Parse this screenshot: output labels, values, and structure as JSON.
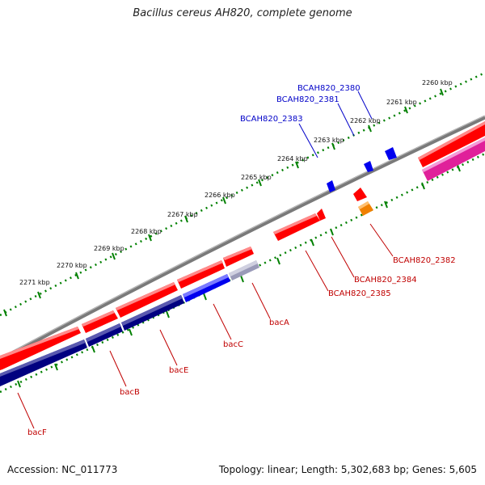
{
  "title": "Bacillus cereus AH820, complete genome",
  "footer": {
    "accession": "Accession: NC_011773",
    "summary": "Topology: linear; Length: 5,302,683 bp; Genes: 5,605"
  },
  "colors": {
    "forward_gene": "#ff0000",
    "reverse_gene": "#0000ee",
    "operon_dark": "#000080",
    "pink_gene": "#e0209a",
    "orange_gene": "#f08000",
    "axis": "#888888",
    "tick": "#008000",
    "label_red": "#c00000",
    "label_blue": "#0000c8"
  },
  "kbp_labels": [
    "2260 kbp",
    "2261 kbp",
    "2262 kbp",
    "2263 kbp",
    "2264 kbp",
    "2265 kbp",
    "2266 kbp",
    "2267 kbp",
    "2268 kbp",
    "2269 kbp",
    "2270 kbp",
    "2271 kbp"
  ],
  "gene_labels": {
    "bcah820_2380": "BCAH820_2380",
    "bcah820_2381": "BCAH820_2381",
    "bcah820_2383": "BCAH820_2383",
    "bcah820_2382": "BCAH820_2382",
    "bcah820_2384": "BCAH820_2384",
    "bcah820_2385": "BCAH820_2385",
    "bacA": "bacA",
    "bacC": "bacC",
    "bacE": "bacE",
    "bacB": "bacB",
    "bacF": "bacF"
  }
}
